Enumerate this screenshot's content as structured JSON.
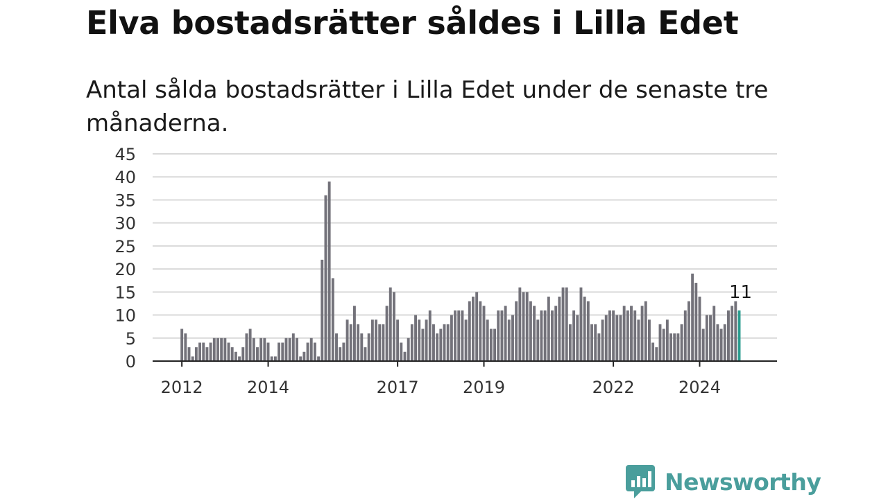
{
  "title": "Elva bostadsrätter såldes i Lilla Edet",
  "subtitle": "Antal sålda bostadsrätter i Lilla Edet under de senaste tre månaderna.",
  "brand": {
    "name": "Newsworthy",
    "icon": "newsworthy-logo-icon",
    "color": "#4a9e9c"
  },
  "colors": {
    "bar": "#73727a",
    "highlight": "#2a9d8f",
    "grid": "#d9d9d9",
    "axis": "#222222"
  },
  "chart_data": {
    "type": "bar",
    "title": "",
    "xlabel": "",
    "ylabel": "",
    "ylim": [
      0,
      45
    ],
    "yticks": [
      "0",
      "5",
      "10",
      "15",
      "20",
      "25",
      "30",
      "35",
      "40",
      "45"
    ],
    "xticks": [
      {
        "label": "2012",
        "index": 0
      },
      {
        "label": "2014",
        "index": 24
      },
      {
        "label": "2017",
        "index": 60
      },
      {
        "label": "2019",
        "index": 84
      },
      {
        "label": "2022",
        "index": 120
      },
      {
        "label": "2024",
        "index": 144
      }
    ],
    "grid": true,
    "values": [
      7,
      6,
      3,
      1,
      3,
      4,
      4,
      3,
      4,
      5,
      5,
      5,
      5,
      4,
      3,
      2,
      1,
      3,
      6,
      7,
      5,
      3,
      5,
      5,
      4,
      1,
      1,
      4,
      4,
      5,
      5,
      6,
      5,
      1,
      2,
      4,
      5,
      4,
      1,
      22,
      36,
      39,
      18,
      6,
      3,
      4,
      9,
      8,
      12,
      8,
      6,
      3,
      6,
      9,
      9,
      8,
      8,
      12,
      16,
      15,
      9,
      4,
      2,
      5,
      8,
      10,
      9,
      7,
      9,
      11,
      8,
      6,
      7,
      8,
      8,
      10,
      11,
      11,
      11,
      9,
      13,
      14,
      15,
      13,
      12,
      9,
      7,
      7,
      11,
      11,
      12,
      9,
      10,
      13,
      16,
      15,
      15,
      13,
      12,
      9,
      11,
      11,
      14,
      11,
      12,
      14,
      16,
      16,
      8,
      11,
      10,
      16,
      14,
      13,
      8,
      8,
      6,
      9,
      10,
      11,
      11,
      10,
      10,
      12,
      11,
      12,
      11,
      9,
      12,
      13,
      9,
      4,
      3,
      8,
      7,
      9,
      6,
      6,
      6,
      8,
      11,
      13,
      19,
      17,
      14,
      7,
      10,
      10,
      12,
      8,
      7,
      8,
      11,
      12,
      13,
      11
    ],
    "highlight_index": 155,
    "last_value_label": "11"
  }
}
